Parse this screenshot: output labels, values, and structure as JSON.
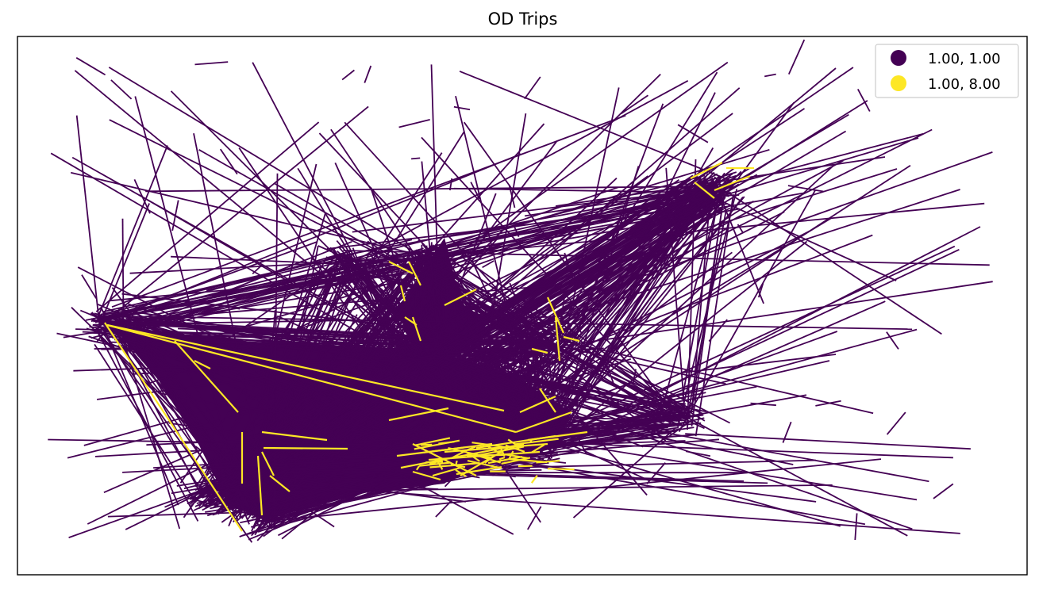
{
  "title": "OD Trips",
  "legend": {
    "placement": "upper-right",
    "entries": [
      {
        "label": "1.00, 1.00",
        "color": "#440154"
      },
      {
        "label": "1.00, 8.00",
        "color": "#fde725"
      }
    ]
  },
  "map_style": {
    "trip_colors": {
      "1.00, 1.00": "#440154",
      "1.00, 8.00": "#fde725"
    },
    "axes_ticks": "none"
  }
}
